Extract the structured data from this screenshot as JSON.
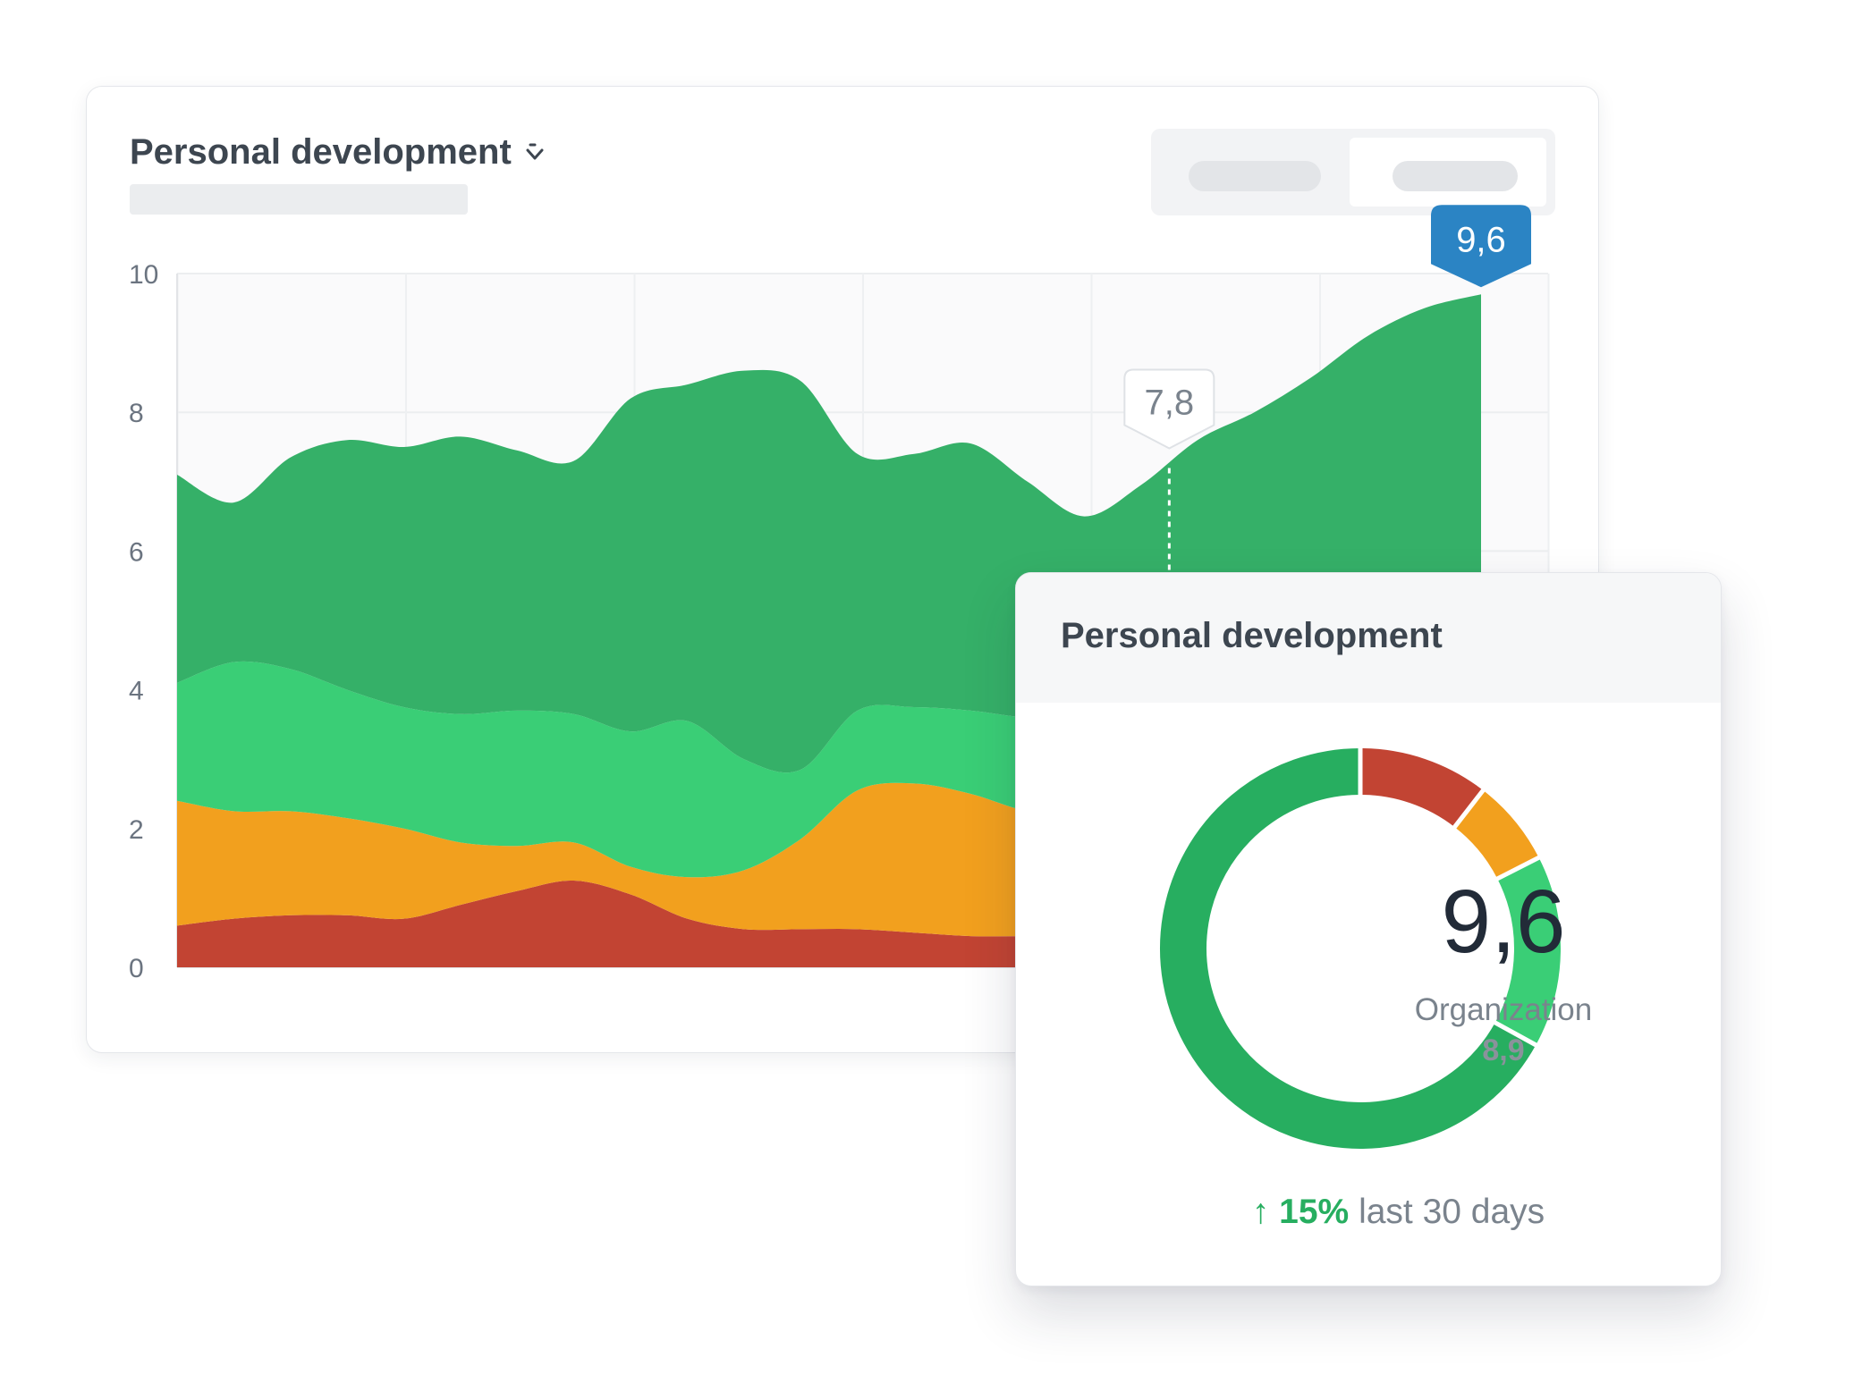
{
  "colors": {
    "dark_green": "#35b068",
    "light_green": "#3ace76",
    "orange": "#f2a01e",
    "red": "#c24433",
    "marker_blue": "#2b84c4",
    "trend_green": "#27ae60"
  },
  "main_card": {
    "title": "Personal development",
    "title_icon": "chevron-down-icon"
  },
  "chart_data": {
    "type": "area",
    "stacked": true,
    "x": [
      0,
      1,
      2,
      3,
      4,
      5,
      6,
      7,
      8,
      9,
      10,
      11,
      12,
      13,
      14,
      15,
      16,
      17,
      18,
      19,
      20,
      21,
      22,
      23
    ],
    "ylim": [
      0,
      10
    ],
    "yticks": [
      "0",
      "2",
      "4",
      "6",
      "8",
      "10"
    ],
    "grid": true,
    "series": [
      {
        "color": "#c24433",
        "values": [
          0.6,
          0.7,
          0.75,
          0.75,
          0.7,
          0.9,
          1.1,
          1.25,
          1.05,
          0.7,
          0.55,
          0.55,
          0.55,
          0.5,
          0.45,
          0.45,
          0.45,
          0.5,
          0.5,
          0.5,
          0.5,
          0.5,
          0.5,
          0.5
        ]
      },
      {
        "color": "#f2a01e",
        "values": [
          1.8,
          1.55,
          1.5,
          1.4,
          1.3,
          0.9,
          0.65,
          0.55,
          0.4,
          0.6,
          0.85,
          1.3,
          2.0,
          2.15,
          2.05,
          1.8,
          1.75,
          1.75,
          1.75,
          1.75,
          1.75,
          1.75,
          1.75,
          1.75
        ]
      },
      {
        "color": "#3ace76",
        "values": [
          1.7,
          2.15,
          2.05,
          1.85,
          1.75,
          1.85,
          1.95,
          1.85,
          1.95,
          2.25,
          1.6,
          1.0,
          1.15,
          1.1,
          1.2,
          1.35,
          1.4,
          1.4,
          1.4,
          1.4,
          1.4,
          1.4,
          1.4,
          1.4
        ]
      },
      {
        "color": "#35b068",
        "values": [
          3.0,
          2.3,
          3.05,
          3.6,
          3.75,
          4.0,
          3.75,
          3.65,
          4.8,
          4.85,
          5.6,
          5.6,
          3.7,
          3.65,
          3.85,
          3.4,
          2.9,
          3.3,
          3.95,
          4.35,
          4.85,
          5.45,
          5.85,
          6.05
        ]
      }
    ],
    "markers": [
      {
        "x": 17.5,
        "value": "7,8",
        "style": "light"
      },
      {
        "x": 23,
        "value": "9,6",
        "style": "primary"
      }
    ]
  },
  "donut_card": {
    "title": "Personal development",
    "value": "9,6",
    "label": "Organization",
    "comparison_value": "8,9",
    "segments": [
      {
        "color": "#c24433",
        "percent": 10.5
      },
      {
        "color": "#f2a01e",
        "percent": 7.0
      },
      {
        "color": "#3ace76",
        "percent": 15.5
      },
      {
        "color": "#27ae60",
        "percent": 67.0
      }
    ],
    "trend": {
      "arrow": "↑",
      "percent": "15%",
      "text": "last 30 days"
    }
  }
}
